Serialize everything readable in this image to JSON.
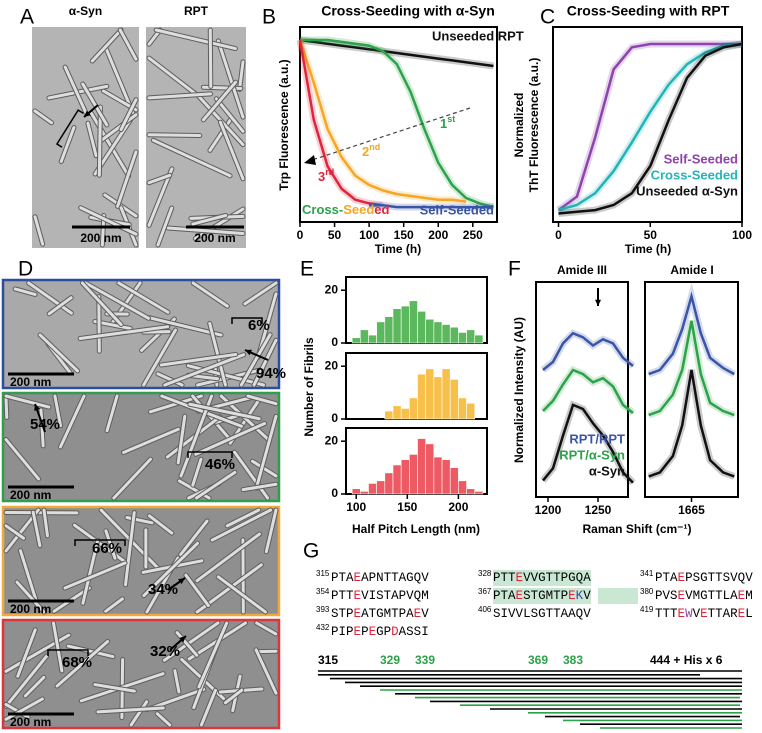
{
  "panel_labels": [
    "A",
    "B",
    "C",
    "D",
    "E",
    "F",
    "G"
  ],
  "panel_a": {
    "images": [
      {
        "label": "α-Syn",
        "scale_bar": "200 nm"
      },
      {
        "label": "RPT",
        "scale_bar": "200 nm"
      }
    ]
  },
  "panel_d": {
    "images": [
      {
        "scale_bar": "200 nm",
        "annotations": [
          "6%",
          "94%"
        ]
      },
      {
        "scale_bar": "200 nm",
        "annotations": [
          "54%",
          "46%"
        ]
      },
      {
        "scale_bar": "200 nm",
        "annotations": [
          "66%",
          "34%"
        ]
      },
      {
        "scale_bar": "200 nm",
        "annotations": [
          "68%",
          "32%"
        ]
      }
    ]
  },
  "chart_data": [
    {
      "type": "line",
      "title": "Cross-Seeding with α-Syn",
      "xlabel": "Time (h)",
      "ylabel": "Trp Fluorescence (a.u.)",
      "x": [
        0,
        20,
        40,
        60,
        80,
        100,
        120,
        140,
        160,
        180,
        200,
        220,
        240,
        260,
        280
      ],
      "xlim": [
        0,
        285
      ],
      "ylim": [
        0,
        1.05
      ],
      "xticks": [
        0,
        50,
        100,
        150,
        200,
        250
      ],
      "series": [
        {
          "name": "Unseeded RPT",
          "color": "#111111",
          "values": [
            0.98,
            0.97,
            0.96,
            0.95,
            0.94,
            0.93,
            0.92,
            0.91,
            0.9,
            0.89,
            0.88,
            0.87,
            0.86,
            0.85,
            0.84
          ]
        },
        {
          "name": "1st",
          "color": "#2ca24a",
          "values": [
            0.98,
            0.98,
            0.98,
            0.97,
            0.96,
            0.95,
            0.92,
            0.85,
            0.7,
            0.5,
            0.32,
            0.2,
            0.13,
            0.1,
            0.08
          ]
        },
        {
          "name": "2nd",
          "color": "#f5a623",
          "values": [
            0.98,
            0.75,
            0.5,
            0.35,
            0.25,
            0.2,
            0.17,
            0.15,
            0.14,
            0.13,
            0.12,
            0.12,
            0.11,
            null,
            null
          ]
        },
        {
          "name": "3rd",
          "color": "#e0243c",
          "values": [
            0.98,
            0.55,
            0.3,
            0.18,
            0.12,
            0.1,
            0.09,
            null,
            null,
            null,
            null,
            null,
            null,
            null,
            null
          ]
        },
        {
          "name": "Self-Seeded",
          "color": "#3a55a8",
          "values": [
            null,
            null,
            null,
            null,
            null,
            0.09,
            0.09,
            0.08,
            0.08,
            0.08,
            0.08,
            0.08,
            0.08,
            0.08,
            0.08
          ]
        }
      ],
      "cross_label": [
        {
          "text": "Cross-",
          "color": "#2ca24a"
        },
        {
          "text": "Seed",
          "color": "#f5a623"
        },
        {
          "text": "ed",
          "color": "#e0243c"
        }
      ]
    },
    {
      "type": "line",
      "title": "Cross-Seeding with RPT",
      "xlabel": "Time (h)",
      "ylabel": [
        "Normalized",
        "ThT Fluorescence (a.u.)"
      ],
      "x": [
        0,
        10,
        20,
        30,
        40,
        50,
        60,
        70,
        80,
        90,
        100
      ],
      "xlim": [
        -3,
        100
      ],
      "ylim": [
        -0.05,
        1.1
      ],
      "xticks": [
        0,
        50,
        100
      ],
      "series": [
        {
          "name": "Self-Seeded",
          "color": "#8e44ad",
          "values": [
            0.02,
            0.1,
            0.45,
            0.85,
            0.98,
            1,
            1,
            1,
            1,
            1,
            1
          ]
        },
        {
          "name": "Cross-Seeded",
          "color": "#26b3b8",
          "values": [
            0.02,
            0.05,
            0.12,
            0.25,
            0.42,
            0.6,
            0.76,
            0.88,
            0.95,
            0.99,
            1
          ]
        },
        {
          "name": "Unseeded α-Syn",
          "color": "#111111",
          "values": [
            0,
            0.01,
            0.02,
            0.05,
            0.12,
            0.28,
            0.55,
            0.8,
            0.93,
            0.98,
            1
          ]
        }
      ]
    },
    {
      "type": "histogram",
      "xlabel": "Half Pitch Length (nm)",
      "ylabel": "Number of Fibrils",
      "bins": [
        96,
        104,
        112,
        120,
        128,
        136,
        144,
        152,
        160,
        168,
        176,
        184,
        192,
        200,
        208,
        216,
        224
      ],
      "xlim": [
        90,
        228
      ],
      "ylim": [
        0,
        25
      ],
      "xticks": [
        100,
        150,
        200
      ],
      "yticks": [
        0,
        20
      ],
      "series": [
        {
          "color": "#5cb85c",
          "values": [
            2,
            5,
            3,
            8,
            10,
            13,
            14,
            16,
            12,
            9,
            8,
            7,
            6,
            4,
            5,
            3
          ]
        },
        {
          "color": "#f7c04a",
          "values": [
            0,
            0,
            0,
            0,
            3,
            5,
            4,
            8,
            17,
            19,
            16,
            19,
            15,
            8,
            6,
            0
          ]
        },
        {
          "color": "#ee5a64",
          "values": [
            2,
            1,
            4,
            5,
            8,
            11,
            13,
            15,
            21,
            19,
            14,
            13,
            10,
            5,
            2,
            1
          ]
        }
      ]
    },
    {
      "type": "line",
      "title": "Amide III",
      "xlabel": "Raman Shift (cm⁻¹)",
      "ylabel": "Normalized Intensity (AU)",
      "x": [
        1195,
        1205,
        1215,
        1225,
        1235,
        1245,
        1255,
        1265,
        1275,
        1285
      ],
      "xlim": [
        1188,
        1280
      ],
      "ylim": [
        0,
        1.05
      ],
      "xticks": [
        1200,
        1250
      ],
      "series": [
        {
          "name": "RPT/RPT",
          "color": "#3a55a8",
          "values": [
            0.62,
            0.66,
            0.75,
            0.8,
            0.78,
            0.74,
            0.77,
            0.75,
            0.68,
            0.64
          ]
        },
        {
          "name": "RPT/α-Syn",
          "color": "#2ca24a",
          "values": [
            0.42,
            0.47,
            0.55,
            0.62,
            0.6,
            0.56,
            0.58,
            0.54,
            0.45,
            0.41
          ]
        },
        {
          "name": "α-Syn",
          "color": "#111111",
          "values": [
            0.08,
            0.14,
            0.3,
            0.45,
            0.43,
            0.36,
            0.3,
            0.22,
            0.12,
            0.07
          ]
        }
      ]
    },
    {
      "type": "line",
      "title": "Amide I",
      "x": [
        1642,
        1648,
        1655,
        1660,
        1665,
        1670,
        1675,
        1682,
        1688
      ],
      "xlim": [
        1640,
        1690
      ],
      "ylim": [
        0,
        1.05
      ],
      "xticks": [
        1665
      ],
      "series": [
        {
          "color": "#3a55a8",
          "values": [
            0.6,
            0.62,
            0.7,
            0.82,
            0.98,
            0.8,
            0.68,
            0.63,
            0.6
          ]
        },
        {
          "color": "#2ca24a",
          "values": [
            0.4,
            0.42,
            0.5,
            0.62,
            0.86,
            0.6,
            0.46,
            0.42,
            0.4
          ]
        },
        {
          "color": "#111111",
          "values": [
            0.1,
            0.12,
            0.2,
            0.35,
            0.62,
            0.35,
            0.18,
            0.12,
            0.1
          ]
        }
      ]
    }
  ],
  "panel_g": {
    "rows": [
      [
        {
          "start": "315",
          "seq": "PTAEAPNTTAGQV"
        },
        {
          "start": "328",
          "seq": "PTTEVVGTTPGQA"
        },
        {
          "start": "341",
          "seq": "PTAEPSGTTSVQV"
        }
      ],
      [
        {
          "start": "354",
          "seq": "PTTEVISTAPVQM"
        },
        {
          "start": "367",
          "seq": "PTAESTGMTPEKV"
        },
        {
          "start": "380",
          "seq": "PVSEVMGTTLAEM"
        }
      ],
      [
        {
          "start": "393",
          "seq": "STPEATGMTPAEV"
        },
        {
          "start": "406",
          "seq": "SIVVLSGTTAAQV"
        },
        {
          "start": "419",
          "seq": "TTTEWVETTAREL"
        }
      ],
      [
        {
          "start": "432",
          "seq": "PIPEPEGPDASSI"
        }
      ]
    ],
    "construct_numbers": [
      "315",
      "329",
      "339",
      "369",
      "383",
      "444 + His x 6"
    ]
  }
}
